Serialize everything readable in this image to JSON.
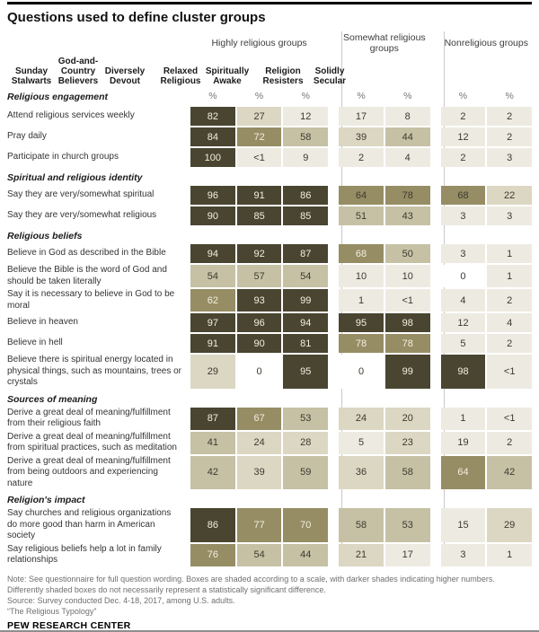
{
  "chart_data": {
    "type": "heatmap",
    "title": "Questions used to define cluster groups",
    "unit": "%",
    "column_groups": [
      {
        "label": "Highly religious groups",
        "columns": [
          "Sunday Stalwarts",
          "God-and-Country Believers",
          "Diversely Devout"
        ]
      },
      {
        "label": "Somewhat religious groups",
        "columns": [
          "Relaxed Religious",
          "Spiritually Awake"
        ]
      },
      {
        "label": "Nonreligious groups",
        "columns": [
          "Religion Resisters",
          "Solidly Secular"
        ]
      }
    ],
    "sections": [
      {
        "label": "Religious engagement",
        "rows": [
          {
            "label": "Attend religious services weekly",
            "values": [
              "82",
              "27",
              "12",
              "17",
              "8",
              "2",
              "2"
            ]
          },
          {
            "label": "Pray daily",
            "values": [
              "84",
              "72",
              "58",
              "39",
              "44",
              "12",
              "2"
            ]
          },
          {
            "label": "Participate in church groups",
            "values": [
              "100",
              "<1",
              "9",
              "2",
              "4",
              "2",
              "3"
            ]
          }
        ]
      },
      {
        "label": "Spiritual and religious identity",
        "rows": [
          {
            "label": "Say they are very/somewhat spiritual",
            "values": [
              "96",
              "91",
              "86",
              "64",
              "78",
              "68",
              "22"
            ],
            "dark_text_cols": [
              3,
              4,
              5
            ]
          },
          {
            "label": "Say they are very/somewhat religious",
            "values": [
              "90",
              "85",
              "85",
              "51",
              "43",
              "3",
              "3"
            ]
          }
        ]
      },
      {
        "label": "Religious beliefs",
        "rows": [
          {
            "label": "Believe in God as described in the Bible",
            "values": [
              "94",
              "92",
              "87",
              "68",
              "50",
              "3",
              "1"
            ]
          },
          {
            "label": "Believe the Bible is the word of God and should be taken literally",
            "values": [
              "54",
              "57",
              "54",
              "10",
              "10",
              "0",
              "1"
            ]
          },
          {
            "label": "Say it is necessary to believe in God to be moral",
            "values": [
              "62",
              "93",
              "99",
              "1",
              "<1",
              "4",
              "2"
            ]
          },
          {
            "label": "Believe in heaven",
            "values": [
              "97",
              "96",
              "94",
              "95",
              "98",
              "12",
              "4"
            ]
          },
          {
            "label": "Believe in hell",
            "values": [
              "91",
              "90",
              "81",
              "78",
              "78",
              "5",
              "2"
            ]
          },
          {
            "label": "Believe there is spiritual energy located in physical things, such as mountains, trees or crystals",
            "values": [
              "29",
              "0",
              "95",
              "0",
              "99",
              "98",
              "<1"
            ]
          }
        ]
      },
      {
        "label": "Sources of meaning",
        "rows": [
          {
            "label": "Derive a great deal of meaning/fulfillment from their religious faith",
            "values": [
              "87",
              "67",
              "53",
              "24",
              "20",
              "1",
              "<1"
            ]
          },
          {
            "label": "Derive a great deal of meaning/fulfillment from spiritual practices, such as meditation",
            "values": [
              "41",
              "24",
              "28",
              "5",
              "23",
              "19",
              "2"
            ]
          },
          {
            "label": "Derive a great deal of meaning/fulfillment from being outdoors and experiencing nature",
            "values": [
              "42",
              "39",
              "59",
              "36",
              "58",
              "64",
              "42"
            ]
          }
        ]
      },
      {
        "label": "Religion's impact",
        "rows": [
          {
            "label": "Say churches and religious organizations do more good than harm in American society",
            "values": [
              "86",
              "77",
              "70",
              "58",
              "53",
              "15",
              "29"
            ]
          },
          {
            "label": "Say religious beliefs help a lot in family relationships",
            "values": [
              "76",
              "54",
              "44",
              "21",
              "17",
              "3",
              "1"
            ]
          }
        ]
      }
    ],
    "shade_scale": [
      {
        "range": "0",
        "color": "#ffffff"
      },
      {
        "range": "1-19",
        "color": "#edebe1"
      },
      {
        "range": "20-39",
        "color": "#dbd7c3"
      },
      {
        "range": "40-59",
        "color": "#c6c1a5"
      },
      {
        "range": "60-79",
        "color": "#968d64"
      },
      {
        "range": "80-100",
        "color": "#4a4531"
      }
    ]
  },
  "footer": {
    "note": "Note: See questionnaire for full question wording. Boxes are shaded according to a scale, with darker shades indicating higher numbers. Differently shaded boxes do not necessarily represent a statistically significant difference.",
    "source": "Source: Survey conducted Dec. 4-18, 2017, among U.S. adults.",
    "report": "“The Religious Typology”",
    "brand": "PEW RESEARCH CENTER"
  }
}
